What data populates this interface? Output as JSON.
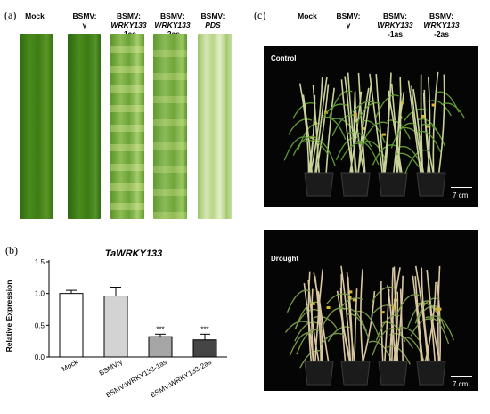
{
  "panel_a": {
    "label": "(a)",
    "columns": [
      {
        "line1": "Mock",
        "line2": "",
        "line3": ""
      },
      {
        "line1": "BSMV:",
        "line2": "γ",
        "line3": ""
      },
      {
        "line1": "BSMV:",
        "line2": "WRKY133",
        "line3": "-1as"
      },
      {
        "line1": "BSMV:",
        "line2": "WRKY133",
        "line3": "-2as"
      },
      {
        "line1": "BSMV:",
        "line2": "PDS",
        "line3": ""
      }
    ]
  },
  "panel_b": {
    "label": "(b)",
    "chart_data": {
      "type": "bar",
      "title": "TaWRKY133",
      "ylabel": "Relative Expression",
      "ylim": [
        0,
        1.5
      ],
      "yticks": [
        "0.0",
        "0.5",
        "1.0",
        "1.5"
      ],
      "categories": [
        "Mock",
        "BSMV:γ",
        "BSMV:WRKY133-1as",
        "BSMV:WRKY133-2as"
      ],
      "values": [
        1.0,
        0.96,
        0.32,
        0.27
      ],
      "errors": [
        0.05,
        0.14,
        0.04,
        0.09
      ],
      "significance": [
        "",
        "",
        "***",
        "***"
      ],
      "colors": [
        "#ffffff",
        "#d3d3d3",
        "#a6a6a6",
        "#454545"
      ]
    }
  },
  "panel_c": {
    "label": "(c)",
    "columns": [
      {
        "line1": "Mock",
        "line2": "",
        "line3": ""
      },
      {
        "line1": "BSMV:",
        "line2": "γ",
        "line3": ""
      },
      {
        "line1": "BSMV:",
        "line2": "WRKY133",
        "line3": "-1as"
      },
      {
        "line1": "BSMV:",
        "line2": "WRKY133",
        "line3": "-2as"
      }
    ],
    "control_label": "Control",
    "drought_label": "Drought",
    "scale_label": "7 cm"
  }
}
